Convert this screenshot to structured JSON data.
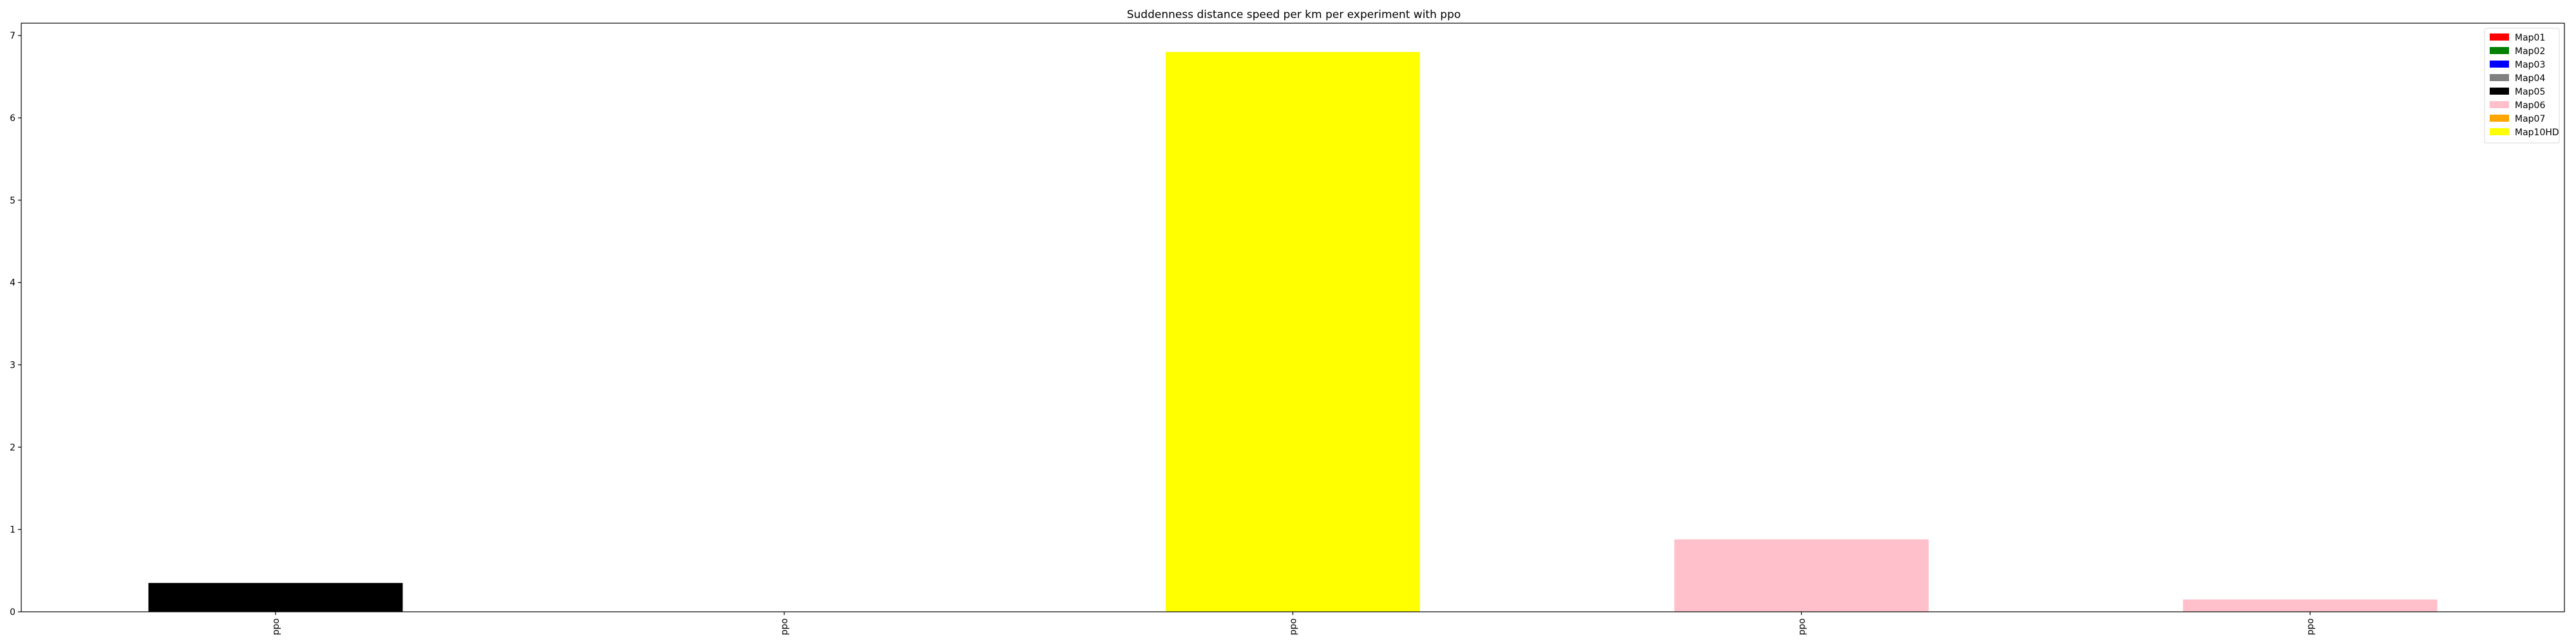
{
  "chart_data": {
    "type": "bar",
    "title": "Suddenness distance speed per km per experiment with ppo",
    "xlabel": "",
    "ylabel": "",
    "categories": [
      "ppo",
      "ppo",
      "ppo",
      "ppo",
      "ppo"
    ],
    "values": [
      0.35,
      0.0,
      6.8,
      0.88,
      0.15
    ],
    "bar_colors": [
      "#000000",
      "#000000",
      "#ffff00",
      "#ffc0cb",
      "#ffc0cb"
    ],
    "ylim": [
      0,
      7.15
    ],
    "yticks": [
      0,
      1,
      2,
      3,
      4,
      5,
      6,
      7
    ],
    "grid": false,
    "legend_position": "top-right",
    "legend": [
      {
        "label": "Map01",
        "color": "#ff0000"
      },
      {
        "label": "Map02",
        "color": "#008000"
      },
      {
        "label": "Map03",
        "color": "#0000ff"
      },
      {
        "label": "Map04",
        "color": "#808080"
      },
      {
        "label": "Map05",
        "color": "#000000"
      },
      {
        "label": "Map06",
        "color": "#ffc0cb"
      },
      {
        "label": "Map07",
        "color": "#ffa500"
      },
      {
        "label": "Map10HD",
        "color": "#ffff00"
      }
    ]
  }
}
